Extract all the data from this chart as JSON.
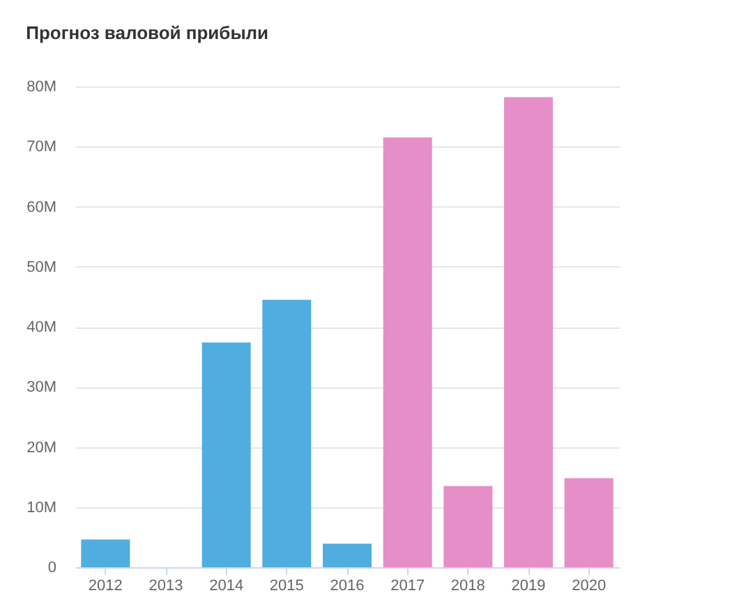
{
  "chart_data": {
    "type": "bar",
    "title": "Прогноз валовой прибыли",
    "categories": [
      "2012",
      "2013",
      "2014",
      "2015",
      "2016",
      "2017",
      "2018",
      "2019",
      "2020"
    ],
    "values": [
      4600000,
      0,
      37400000,
      44500000,
      3900000,
      71500000,
      13500000,
      78200000,
      14800000
    ],
    "colors": [
      "#4fade0",
      "#4fade0",
      "#4fade0",
      "#4fade0",
      "#4fade0",
      "#e58ec8",
      "#e58ec8",
      "#e58ec8",
      "#e58ec8"
    ],
    "ylim": [
      0,
      80000000
    ],
    "yticks": [
      0,
      {
        "value": 10000000,
        "label": "10M"
      },
      {
        "value": 20000000,
        "label": "20M"
      },
      {
        "value": 30000000,
        "label": "30M"
      },
      {
        "value": 40000000,
        "label": "40M"
      },
      {
        "value": 50000000,
        "label": "50M"
      },
      {
        "value": 60000000,
        "label": "60M"
      },
      {
        "value": 70000000,
        "label": "70M"
      },
      {
        "value": 80000000,
        "label": "80M"
      }
    ],
    "grid": "y"
  }
}
